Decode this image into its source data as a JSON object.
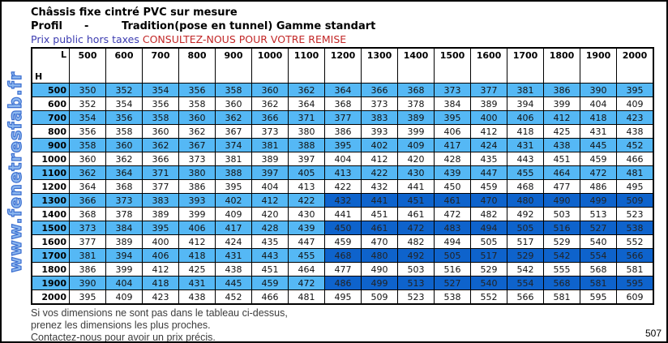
{
  "header": {
    "title": "Châssis fixe cintré PVC sur mesure",
    "profil_label": "Profil",
    "profil_dash": "-",
    "profil_value": "Tradition(pose en tunnel) Gamme standart",
    "tax_note": "Prix public hors taxes",
    "promo_note": "CONSULTEZ-NOUS POUR VOTRE REMISE"
  },
  "watermark": {
    "text": "www.fenetresfab.fr"
  },
  "table": {
    "corner_l": "L",
    "corner_h": "H",
    "columns": [
      "500",
      "600",
      "700",
      "800",
      "900",
      "1000",
      "1100",
      "1200",
      "1300",
      "1400",
      "1500",
      "1600",
      "1700",
      "1800",
      "1900",
      "2000"
    ],
    "rows": [
      {
        "h": "500",
        "values": [
          350,
          352,
          354,
          356,
          358,
          360,
          362,
          364,
          366,
          368,
          373,
          377,
          381,
          386,
          390,
          395
        ]
      },
      {
        "h": "600",
        "values": [
          352,
          354,
          356,
          358,
          360,
          362,
          364,
          368,
          373,
          378,
          384,
          389,
          394,
          399,
          404,
          409
        ]
      },
      {
        "h": "700",
        "values": [
          354,
          356,
          358,
          360,
          362,
          366,
          371,
          377,
          383,
          389,
          395,
          400,
          406,
          412,
          418,
          423
        ]
      },
      {
        "h": "800",
        "values": [
          356,
          358,
          360,
          362,
          367,
          373,
          380,
          386,
          393,
          399,
          406,
          412,
          418,
          425,
          431,
          438
        ]
      },
      {
        "h": "900",
        "values": [
          358,
          360,
          362,
          367,
          374,
          381,
          388,
          395,
          402,
          409,
          417,
          424,
          431,
          438,
          445,
          452
        ]
      },
      {
        "h": "1000",
        "values": [
          360,
          362,
          366,
          373,
          381,
          389,
          397,
          404,
          412,
          420,
          428,
          435,
          443,
          451,
          459,
          466
        ]
      },
      {
        "h": "1100",
        "values": [
          362,
          364,
          371,
          380,
          388,
          397,
          405,
          413,
          422,
          430,
          439,
          447,
          455,
          464,
          472,
          481
        ]
      },
      {
        "h": "1200",
        "values": [
          364,
          368,
          377,
          386,
          395,
          404,
          413,
          422,
          432,
          441,
          450,
          459,
          468,
          477,
          486,
          495
        ]
      },
      {
        "h": "1300",
        "values": [
          366,
          373,
          383,
          393,
          402,
          412,
          422,
          432,
          441,
          451,
          461,
          470,
          480,
          490,
          499,
          509
        ]
      },
      {
        "h": "1400",
        "values": [
          368,
          378,
          389,
          399,
          409,
          420,
          430,
          441,
          451,
          461,
          472,
          482,
          492,
          503,
          513,
          523
        ]
      },
      {
        "h": "1500",
        "values": [
          373,
          384,
          395,
          406,
          417,
          428,
          439,
          450,
          461,
          472,
          483,
          494,
          505,
          516,
          527,
          538
        ]
      },
      {
        "h": "1600",
        "values": [
          377,
          389,
          400,
          412,
          424,
          435,
          447,
          459,
          470,
          482,
          494,
          505,
          517,
          529,
          540,
          552
        ]
      },
      {
        "h": "1700",
        "values": [
          381,
          394,
          406,
          418,
          431,
          443,
          455,
          468,
          480,
          492,
          505,
          517,
          529,
          542,
          554,
          566
        ]
      },
      {
        "h": "1800",
        "values": [
          386,
          399,
          412,
          425,
          438,
          451,
          464,
          477,
          490,
          503,
          516,
          529,
          542,
          555,
          568,
          581
        ]
      },
      {
        "h": "1900",
        "values": [
          390,
          404,
          418,
          431,
          445,
          459,
          472,
          486,
          499,
          513,
          527,
          540,
          554,
          568,
          581,
          595
        ]
      },
      {
        "h": "2000",
        "values": [
          395,
          409,
          423,
          438,
          452,
          466,
          481,
          495,
          509,
          523,
          538,
          552,
          566,
          581,
          595,
          609
        ]
      }
    ],
    "highlight_rows": [
      "1300",
      "1500",
      "1700",
      "1900"
    ],
    "highlight_from_column": "1200"
  },
  "colors": {
    "stripe_light_blue": "#55b8f5",
    "highlight_dark_blue": "#0e63cc",
    "tax_note_blue": "#3b3bb0",
    "promo_red": "#c22727",
    "watermark_blue": "#8db8f0"
  },
  "footer": {
    "lines": [
      "Si vos dimensions ne sont pas dans le tableau ci-dessus,",
      "prenez les dimensions les plus proches.",
      "Contactez-nous pour avoir un prix précis."
    ],
    "page_number": "507"
  }
}
